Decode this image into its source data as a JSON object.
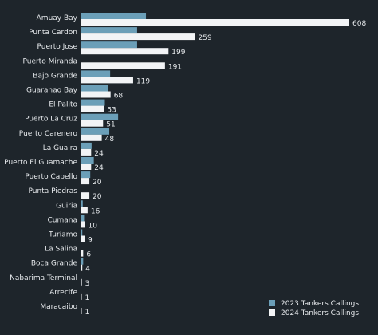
{
  "chart_data": {
    "type": "bar",
    "orientation": "horizontal",
    "categories": [
      "Amuay Bay",
      "Punta Cardon",
      "Puerto Jose",
      "Puerto Miranda",
      "Bajo Grande",
      "Guaranao Bay",
      "El Palito",
      "Puerto La Cruz",
      "Puerto Carenero",
      "La Guaira",
      "Puerto El Guamache",
      "Puerto Cabello",
      "Punta Piedras",
      "Guiria",
      "Cumana",
      "Turiamo",
      "La Salina",
      "Boca Grande",
      "Nabarima Terminal",
      "Arrecife",
      "Maracaibo"
    ],
    "series": [
      {
        "name": "2023 Tankers Callings",
        "color": "#6b9fb8",
        "values": [
          148,
          128,
          128,
          0,
          67,
          63,
          55,
          85,
          65,
          25,
          30,
          22,
          0,
          5,
          8,
          4,
          0,
          6,
          0,
          0,
          0
        ]
      },
      {
        "name": "2024 Tankers Callings",
        "color": "#f2f4f6",
        "values": [
          608,
          259,
          199,
          191,
          119,
          68,
          53,
          51,
          48,
          24,
          24,
          20,
          20,
          16,
          10,
          9,
          6,
          4,
          3,
          1,
          1
        ]
      }
    ],
    "value_labels": [
      "608",
      "259",
      "199",
      "191",
      "119",
      "68",
      "53",
      "51",
      "48",
      "24",
      "24",
      "20",
      "20",
      "16",
      "10",
      "9",
      "6",
      "4",
      "3",
      "1",
      "1"
    ],
    "xlim": [
      0,
      610
    ],
    "grid": false,
    "legend_position": "bottom-right"
  }
}
